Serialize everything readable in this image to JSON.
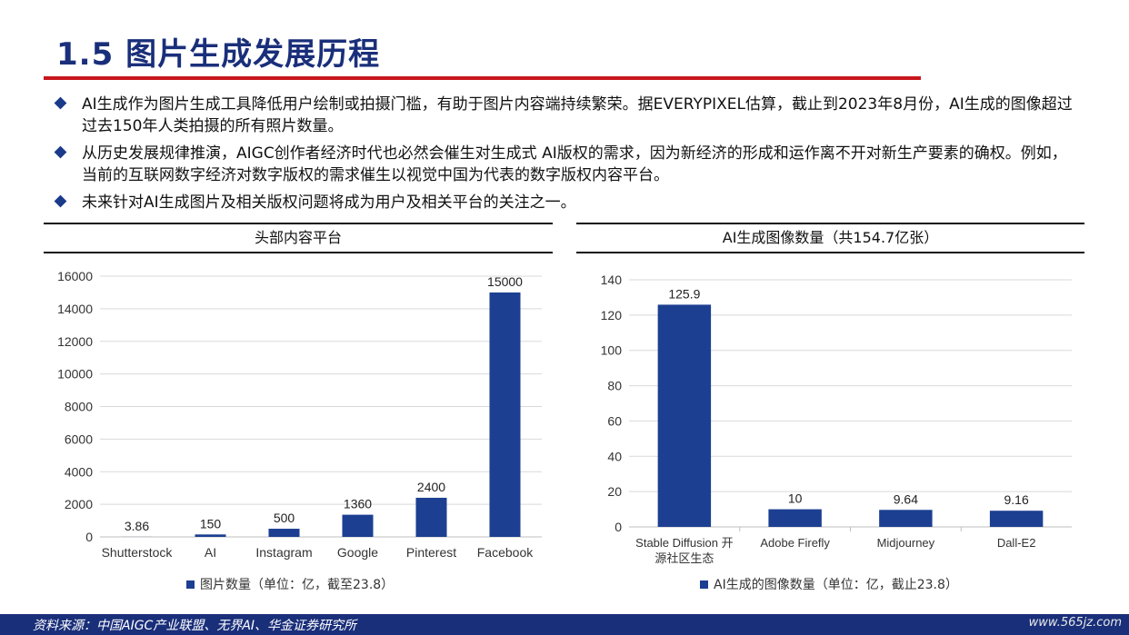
{
  "header": {
    "title": "1.5 图片生成发展历程"
  },
  "bullets": [
    "AI生成作为图片生成工具降低用户绘制或拍摄门槛，有助于图片内容端持续繁荣。据EVERYPIXEL估算，截止到2023年8月份，AI生成的图像超过过去150年人类拍摄的所有照片数量。",
    "从历史发展规律推演，AIGC创作者经济时代也必然会催生对生成式 AI版权的需求，因为新经济的形成和运作离不开对新生产要素的确权。例如，当前的互联网数字经济对数字版权的需求催生以视觉中国为代表的数字版权内容平台。",
    "未来针对AI生成图片及相关版权问题将成为用户及相关平台的关注之一。"
  ],
  "colors": {
    "bar": "#1c3f91",
    "accent_rule": "#c8161d",
    "title": "#1a2f7a"
  },
  "chart_data": [
    {
      "type": "bar",
      "title": "头部内容平台",
      "categories": [
        "Shutterstock",
        "AI",
        "Instagram",
        "Google",
        "Pinterest",
        "Facebook"
      ],
      "series": [
        {
          "name": "图片数量（单位：亿，截至23.8）",
          "values": [
            3.86,
            150,
            500,
            1360,
            2400,
            15000
          ]
        }
      ],
      "value_labels": [
        "3.86",
        "150",
        "500",
        "1360",
        "2400",
        "15000"
      ],
      "ylim": [
        0,
        16000
      ],
      "yticks": [
        "0",
        "2000",
        "4000",
        "6000",
        "8000",
        "10000",
        "12000",
        "14000",
        "16000"
      ],
      "grid": true,
      "legend": "bottom"
    },
    {
      "type": "bar",
      "title": "AI生成图像数量（共154.7亿张）",
      "categories": [
        "Stable Diffusion 开源社区生态",
        "Adobe Firefly",
        "Midjourney",
        "Dall-E2"
      ],
      "category_lines": [
        [
          "Stable Diffusion 开",
          "源社区生态"
        ],
        [
          "Adobe Firefly"
        ],
        [
          "Midjourney"
        ],
        [
          "Dall-E2"
        ]
      ],
      "series": [
        {
          "name": "AI生成的图像数量（单位：亿，截止23.8）",
          "values": [
            125.9,
            10,
            9.64,
            9.16
          ]
        }
      ],
      "value_labels": [
        "125.9",
        "10",
        "9.64",
        "9.16"
      ],
      "ylim": [
        0,
        140
      ],
      "yticks": [
        "0",
        "20",
        "40",
        "60",
        "80",
        "100",
        "120",
        "140"
      ],
      "grid": true,
      "legend": "bottom"
    }
  ],
  "footer": {
    "source": "资料来源：中国AIGC产业联盟、无界AI、华金证券研究所",
    "watermark": "www.565jz.com"
  }
}
